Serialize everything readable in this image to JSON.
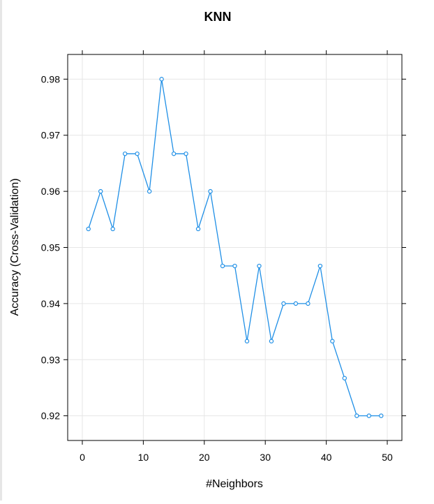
{
  "chart_data": {
    "type": "line",
    "title": "KNN",
    "xlabel": "#Neighbors",
    "ylabel": "Accuracy (Cross-Validation)",
    "xlim": [
      -2.4,
      52.4
    ],
    "ylim": [
      0.9156,
      0.9844
    ],
    "xticks": [
      0,
      10,
      20,
      30,
      40,
      50
    ],
    "yticks": [
      0.92,
      0.93,
      0.94,
      0.95,
      0.96,
      0.97,
      0.98
    ],
    "xtick_labels": [
      "0",
      "10",
      "20",
      "30",
      "40",
      "50"
    ],
    "ytick_labels": [
      "0.92",
      "0.93",
      "0.94",
      "0.95",
      "0.96",
      "0.97",
      "0.98"
    ],
    "grid": true,
    "series": [
      {
        "color": "#1f8fe6",
        "marker": "circle",
        "x": [
          1,
          3,
          5,
          7,
          9,
          11,
          13,
          15,
          17,
          19,
          21,
          23,
          25,
          27,
          29,
          31,
          33,
          35,
          37,
          39,
          41,
          43,
          45,
          47,
          49
        ],
        "y": [
          0.9533,
          0.96,
          0.9533,
          0.9667,
          0.9667,
          0.96,
          0.98,
          0.9667,
          0.9667,
          0.9533,
          0.96,
          0.9467,
          0.9467,
          0.9333,
          0.9467,
          0.9333,
          0.94,
          0.94,
          0.94,
          0.9467,
          0.9333,
          0.9267,
          0.92,
          0.92,
          0.92
        ]
      }
    ]
  }
}
